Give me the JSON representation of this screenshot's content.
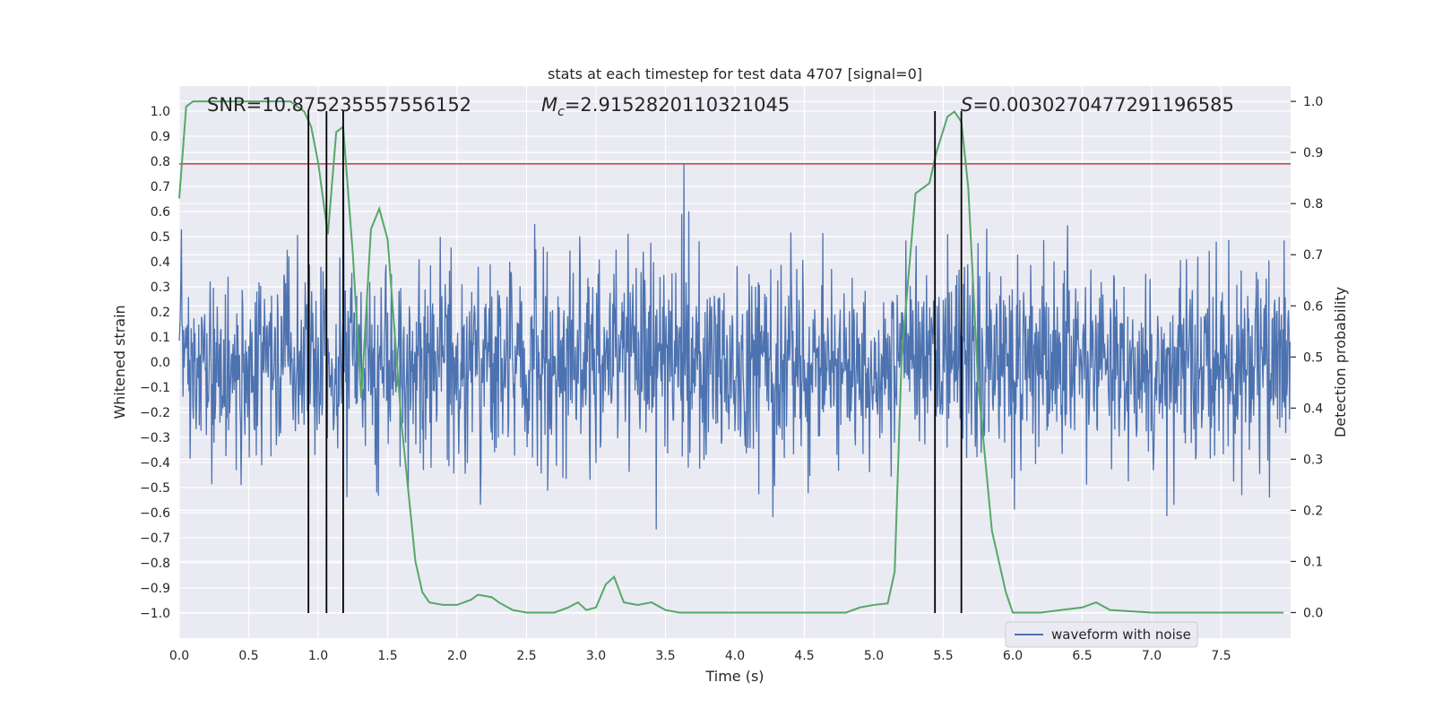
{
  "chart_data": {
    "type": "line",
    "title": "stats at each timestep for test data 4707 [signal=0]",
    "xlabel": "Time (s)",
    "ylabel": "Whitened strain",
    "y2label": "Detection probability",
    "xlim": [
      0.0,
      8.0
    ],
    "ylim": [
      -1.1,
      1.1
    ],
    "y2lim": [
      -0.05,
      1.03
    ],
    "xticks": [
      0.0,
      0.5,
      1.0,
      1.5,
      2.0,
      2.5,
      3.0,
      3.5,
      4.0,
      4.5,
      5.0,
      5.5,
      6.0,
      6.5,
      7.0,
      7.5
    ],
    "xtick_labels": [
      "0.0",
      "0.5",
      "1.0",
      "1.5",
      "2.0",
      "2.5",
      "3.0",
      "3.5",
      "4.0",
      "4.5",
      "5.0",
      "5.5",
      "6.0",
      "6.5",
      "7.0",
      "7.5"
    ],
    "yticks": [
      1.0,
      0.9,
      0.8,
      0.7,
      0.6,
      0.5,
      0.4,
      0.3,
      0.2,
      0.1,
      0.0,
      -0.1,
      -0.2,
      -0.3,
      -0.4,
      -0.5,
      -0.6,
      -0.7,
      -0.8,
      -0.9,
      -1.0
    ],
    "ytick_labels": [
      "1.0",
      "0.9",
      "0.8",
      "0.7",
      "0.6",
      "0.5",
      "0.4",
      "0.3",
      "0.2",
      "0.1",
      "0.0",
      "−0.1",
      "−0.2",
      "−0.3",
      "−0.4",
      "−0.5",
      "−0.6",
      "−0.7",
      "−0.8",
      "−0.9",
      "−1.0"
    ],
    "y2ticks": [
      1.0,
      0.9,
      0.8,
      0.7,
      0.6,
      0.5,
      0.4,
      0.3,
      0.2,
      0.1,
      0.0
    ],
    "y2tick_labels": [
      "1.0",
      "0.9",
      "0.8",
      "0.7",
      "0.6",
      "0.5",
      "0.4",
      "0.3",
      "0.2",
      "0.1",
      "0.0"
    ],
    "annotations": {
      "snr": "SNR=10.875235557556152",
      "mc_symbol": "M",
      "mc_subscript": "c",
      "mc_value": "=2.9152820110321045",
      "s_symbol": "S",
      "s_value": "=0.0030270477291196585"
    },
    "legend": {
      "label": "waveform with noise",
      "location": "lower-right"
    },
    "threshold_line": {
      "y": 0.79,
      "color": "#c44e52"
    },
    "vertical_markers_x": [
      0.93,
      1.06,
      1.18,
      5.44,
      5.63
    ],
    "waveform": {
      "name": "waveform with noise",
      "color": "#4c72b0",
      "duration": 8.0,
      "sample_rate": 256,
      "noise_level": 0.2
    },
    "probability_series": {
      "name": "detection probability",
      "color": "#55a868",
      "x": [
        0.0,
        0.05,
        0.1,
        0.2,
        0.3,
        0.4,
        0.5,
        0.6,
        0.7,
        0.75,
        0.8,
        0.85,
        0.9,
        0.95,
        1.0,
        1.07,
        1.13,
        1.18,
        1.25,
        1.31,
        1.38,
        1.44,
        1.5,
        1.6,
        1.7,
        1.75,
        1.8,
        1.9,
        2.0,
        2.1,
        2.15,
        2.25,
        2.3,
        2.4,
        2.5,
        2.6,
        2.7,
        2.8,
        2.87,
        2.93,
        3.0,
        3.07,
        3.13,
        3.2,
        3.3,
        3.4,
        3.5,
        3.6,
        3.8,
        4.0,
        4.2,
        4.4,
        4.5,
        4.6,
        4.8,
        4.9,
        5.0,
        5.1,
        5.15,
        5.2,
        5.3,
        5.4,
        5.45,
        5.53,
        5.58,
        5.63,
        5.68,
        5.75,
        5.85,
        5.95,
        6.0,
        6.2,
        6.5,
        6.6,
        6.7,
        7.0,
        7.5,
        7.8,
        7.95
      ],
      "y": [
        0.81,
        0.99,
        1.0,
        1.0,
        1.0,
        1.0,
        1.0,
        1.0,
        1.0,
        1.0,
        1.0,
        0.99,
        0.98,
        0.95,
        0.88,
        0.74,
        0.94,
        0.95,
        0.7,
        0.42,
        0.75,
        0.79,
        0.73,
        0.37,
        0.1,
        0.04,
        0.02,
        0.015,
        0.015,
        0.025,
        0.035,
        0.03,
        0.02,
        0.005,
        0.0,
        0.0,
        0.0,
        0.01,
        0.02,
        0.005,
        0.01,
        0.055,
        0.07,
        0.02,
        0.015,
        0.02,
        0.005,
        0.0,
        0.0,
        0.0,
        0.0,
        0.0,
        0.0,
        0.0,
        0.0,
        0.01,
        0.015,
        0.018,
        0.08,
        0.5,
        0.82,
        0.84,
        0.9,
        0.97,
        0.98,
        0.96,
        0.83,
        0.45,
        0.16,
        0.04,
        0.0,
        0.0,
        0.01,
        0.02,
        0.005,
        0.0,
        0.0,
        0.0,
        0.0
      ]
    }
  }
}
